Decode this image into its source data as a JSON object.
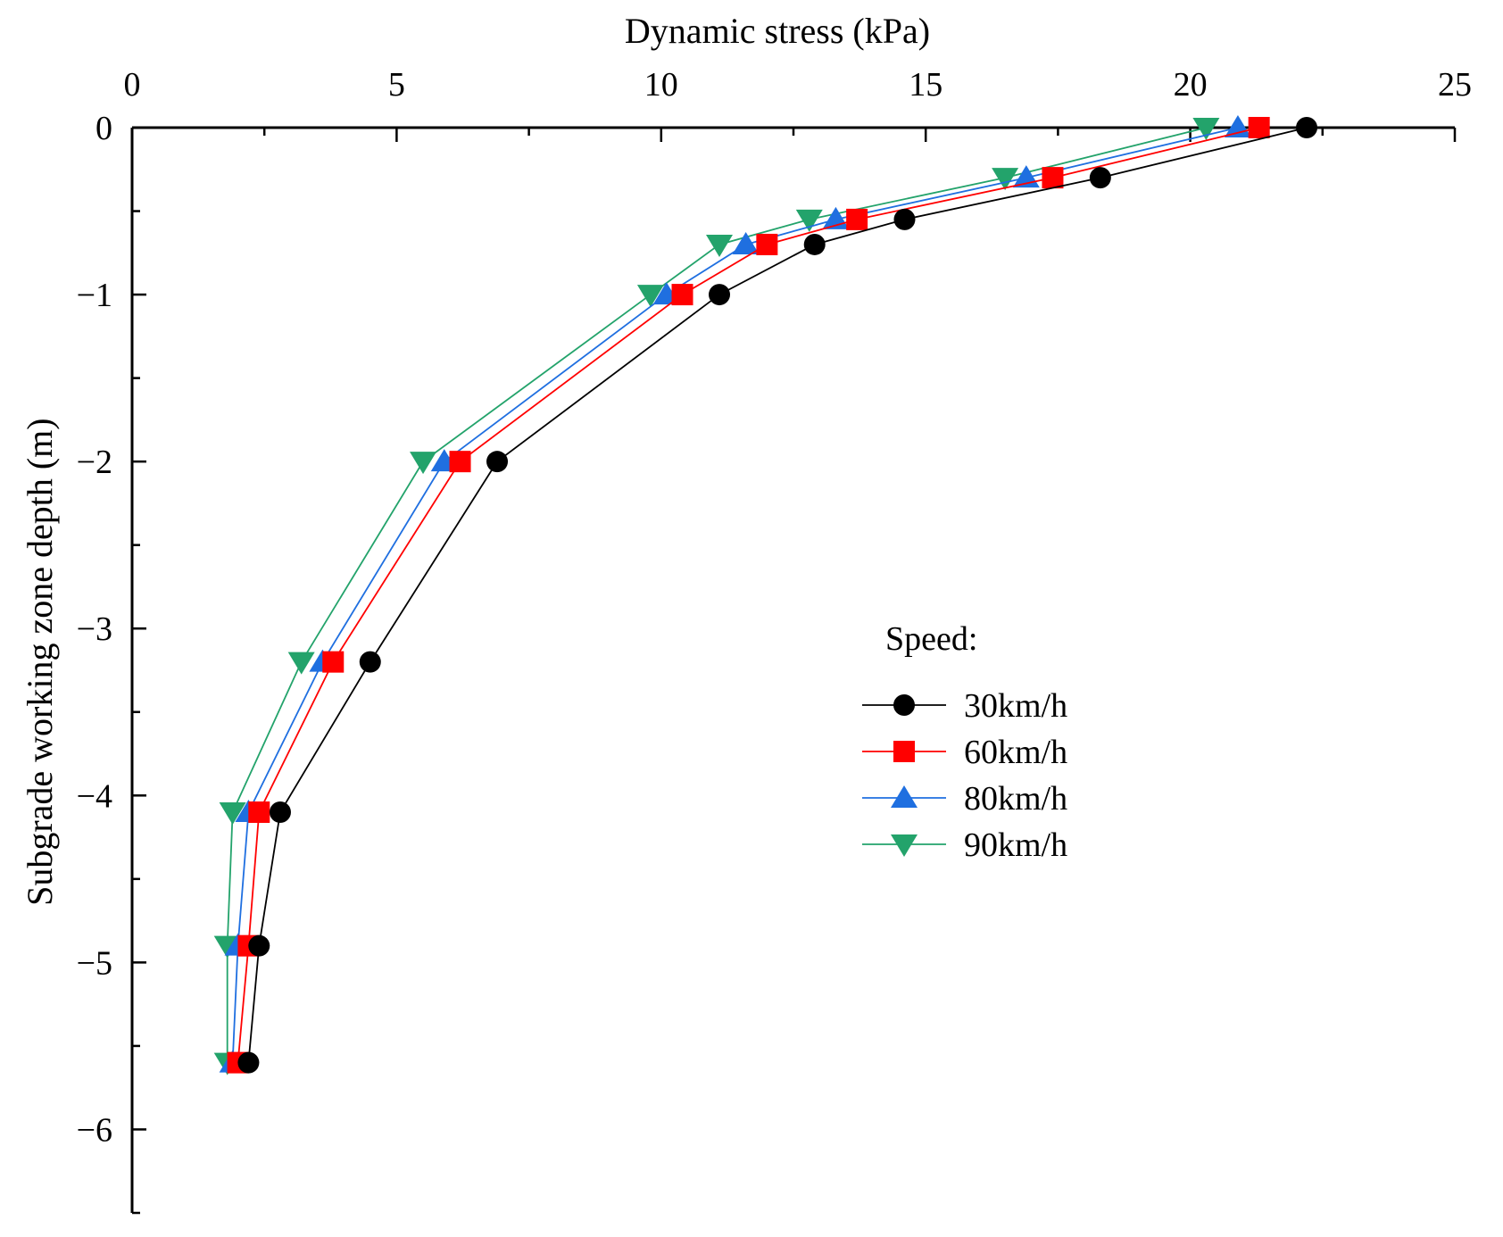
{
  "chart_data": {
    "type": "line",
    "title": "",
    "xlabel": "Dynamic stress (kPa)",
    "ylabel": "Subgrade working zone depth (m)",
    "xlim": [
      0,
      25
    ],
    "ylim": [
      -6.5,
      0
    ],
    "x_ticks": [
      0,
      5,
      10,
      15,
      20,
      25
    ],
    "x_tick_labels": [
      "0",
      "5",
      "10",
      "15",
      "20",
      "25"
    ],
    "y_ticks": [
      0,
      -1,
      -2,
      -3,
      -4,
      -5,
      -6
    ],
    "y_tick_labels": [
      "0",
      "−1",
      "−2",
      "−3",
      "−4",
      "−5",
      "−6"
    ],
    "x_axis_position": "top",
    "grid": false,
    "legend": {
      "title": "Speed:",
      "position": "center-right"
    },
    "depths": [
      0,
      -0.3,
      -0.55,
      -0.7,
      -1.0,
      -2.0,
      -3.2,
      -4.1,
      -4.9,
      -5.6
    ],
    "series": [
      {
        "name": "30km/h",
        "color": "#000000",
        "marker": "circle",
        "x": [
          22.2,
          18.3,
          14.6,
          12.9,
          11.1,
          6.9,
          4.5,
          2.8,
          2.4,
          2.2
        ]
      },
      {
        "name": "60km/h",
        "color": "#ff0000",
        "marker": "square",
        "x": [
          21.3,
          17.4,
          13.7,
          12.0,
          10.4,
          6.2,
          3.8,
          2.4,
          2.2,
          2.0
        ]
      },
      {
        "name": "80km/h",
        "color": "#1f6fe0",
        "marker": "triangle-up",
        "x": [
          20.9,
          16.9,
          13.3,
          11.6,
          10.1,
          5.9,
          3.6,
          2.2,
          2.0,
          1.9
        ]
      },
      {
        "name": "90km/h",
        "color": "#23a36b",
        "marker": "triangle-down",
        "x": [
          20.3,
          16.5,
          12.8,
          11.1,
          9.8,
          5.5,
          3.2,
          1.9,
          1.8,
          1.8
        ]
      }
    ]
  }
}
